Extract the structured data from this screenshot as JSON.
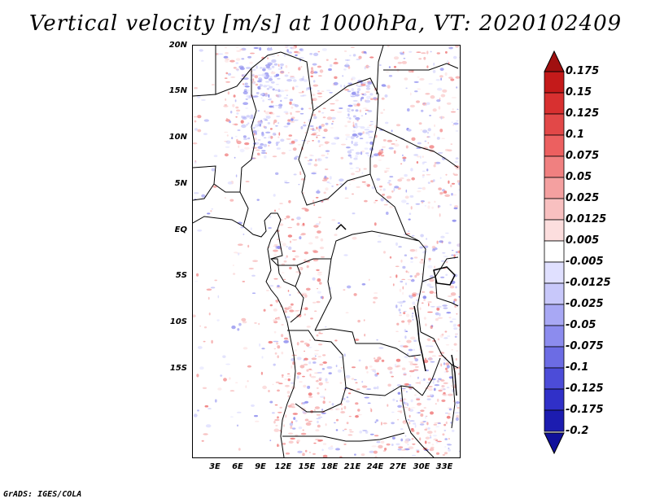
{
  "title": "Vertical velocity [m/s] at 1000hPa, VT: 2020102409",
  "footer": "GrADS: IGES/COLA",
  "map": {
    "lat_labels": [
      "20N",
      "15N",
      "10N",
      "5N",
      "EQ",
      "5S",
      "10S",
      "15S"
    ],
    "lon_labels": [
      "3E",
      "6E",
      "9E",
      "12E",
      "15E",
      "18E",
      "21E",
      "24E",
      "27E",
      "30E",
      "33E"
    ]
  },
  "colorbar": {
    "levels": [
      "0.175",
      "0.15",
      "0.125",
      "0.1",
      "0.075",
      "0.05",
      "0.025",
      "0.0125",
      "0.005",
      "-0.005",
      "-0.0125",
      "-0.025",
      "-0.05",
      "-0.075",
      "-0.1",
      "-0.125",
      "-0.175",
      "-0.2"
    ],
    "colors": [
      "#c41a1a",
      "#d83030",
      "#e24848",
      "#ec6060",
      "#f08080",
      "#f4a0a0",
      "#f8c0c0",
      "#fcdede",
      "#ffffff",
      "#e0e0ff",
      "#c8c8fa",
      "#a8a8f4",
      "#8c8cee",
      "#6c6ce4",
      "#4c4cd8",
      "#3030c8",
      "#1c1cb0"
    ],
    "top_arrow_color": "#a01010",
    "bottom_arrow_color": "#10109a"
  }
}
